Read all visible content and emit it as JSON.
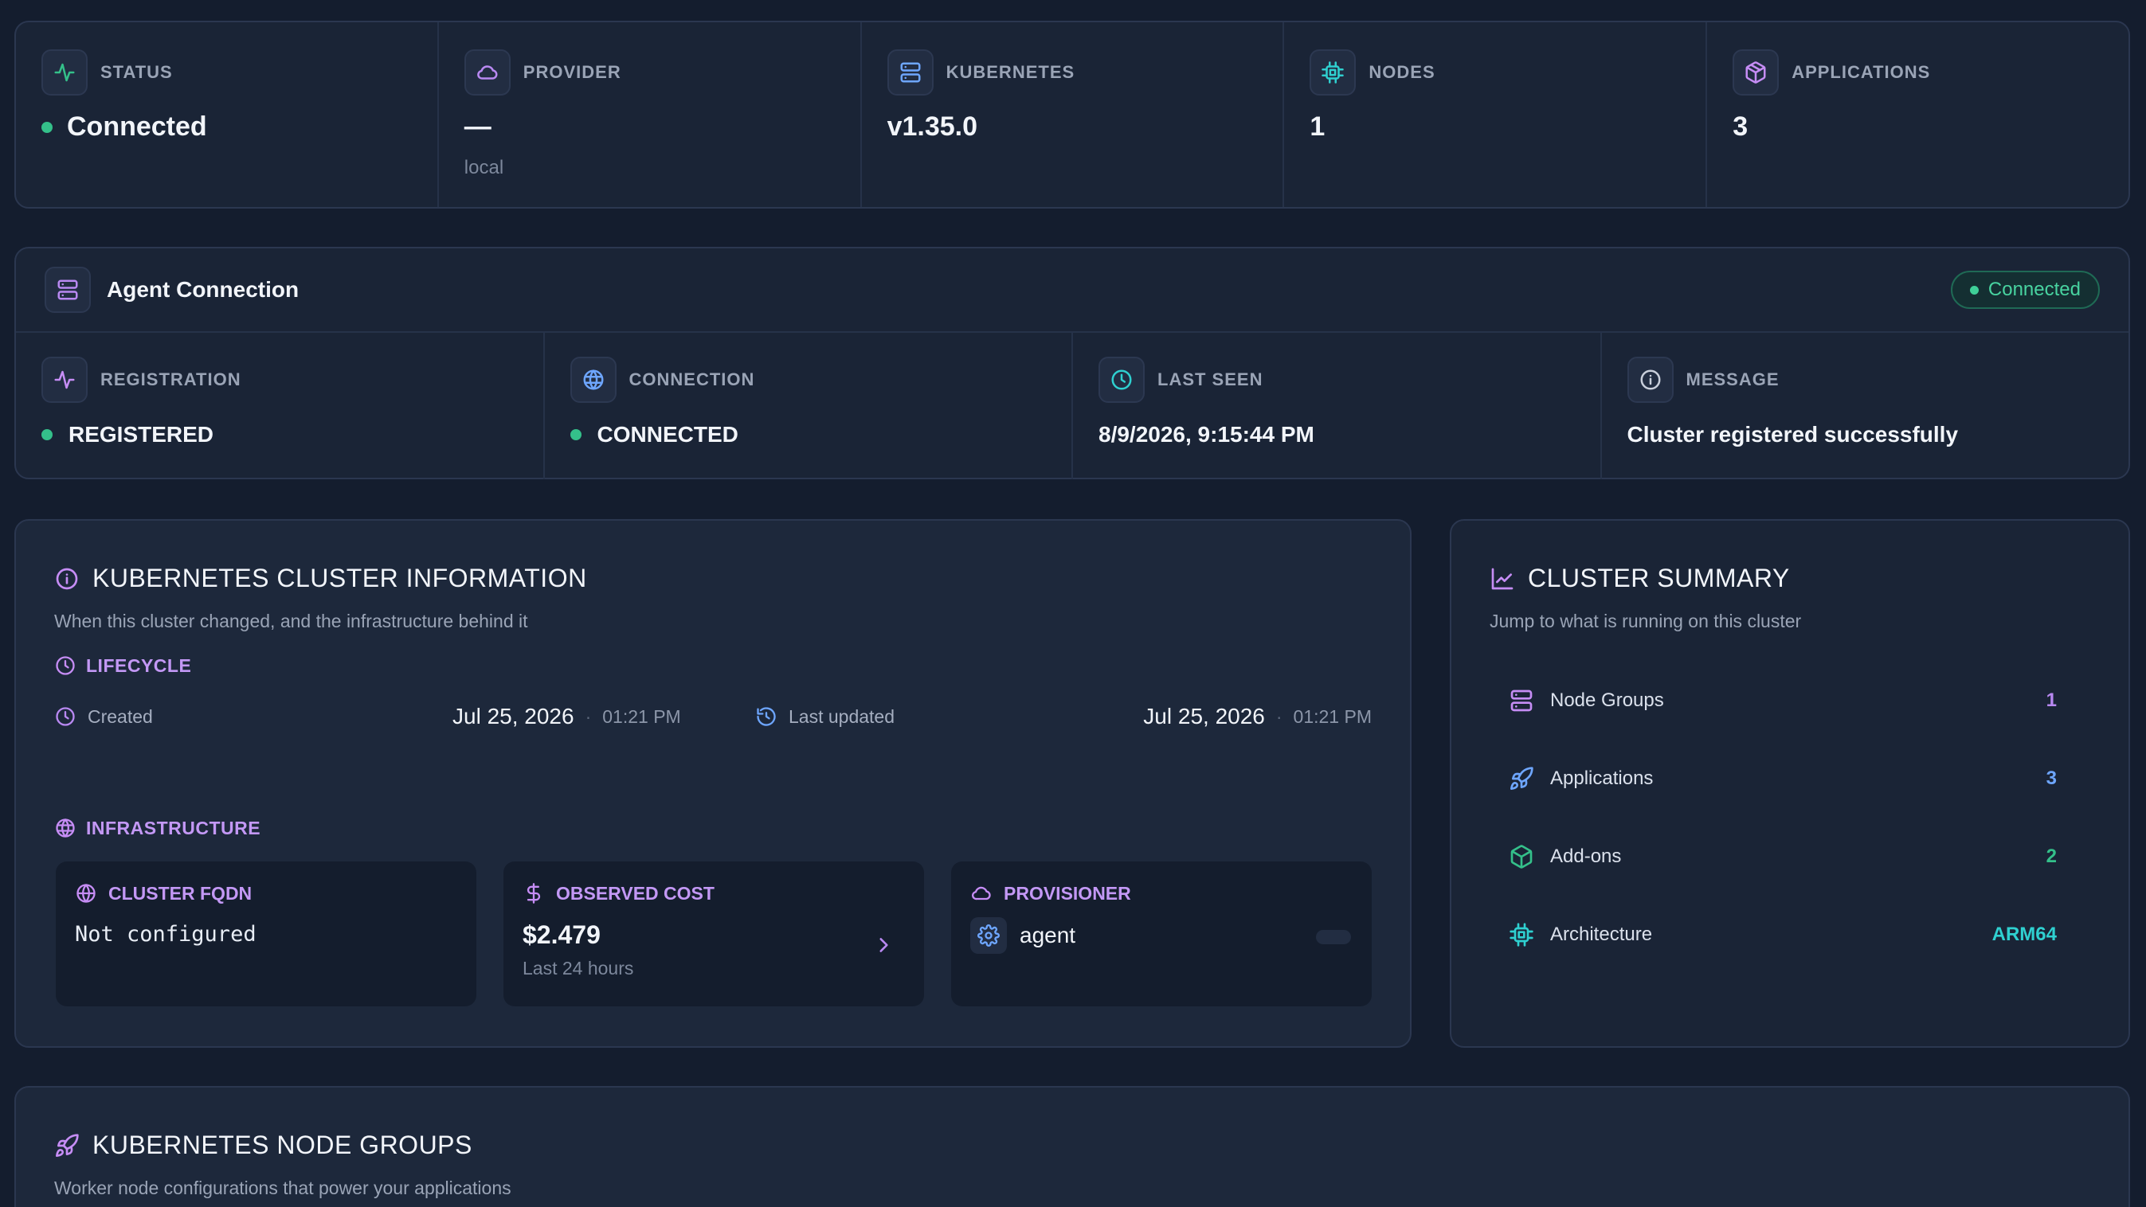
{
  "stats": [
    {
      "label": "STATUS",
      "value": "Connected",
      "sub": "",
      "icon": "activity-icon",
      "icon_color": "#34c08a"
    },
    {
      "label": "PROVIDER",
      "value": "—",
      "sub": "local",
      "icon": "cloud-icon",
      "icon_color": "#b989f2"
    },
    {
      "label": "KUBERNETES",
      "value": "v1.35.0",
      "sub": "",
      "icon": "server-icon",
      "icon_color": "#6ea6ff"
    },
    {
      "label": "NODES",
      "value": "1",
      "sub": "",
      "icon": "cpu-icon",
      "icon_color": "#2fd0d0"
    },
    {
      "label": "APPLICATIONS",
      "value": "3",
      "sub": "",
      "icon": "package-icon",
      "icon_color": "#c68df5"
    }
  ],
  "agent": {
    "title": "Agent Connection",
    "badge": "Connected",
    "cells": [
      {
        "label": "REGISTRATION",
        "value": "REGISTERED",
        "icon": "activity-icon"
      },
      {
        "label": "CONNECTION",
        "value": "CONNECTED",
        "icon": "globe-icon"
      },
      {
        "label": "LAST SEEN",
        "value": "8/9/2026, 9:15:44 PM",
        "icon": "clock-icon"
      },
      {
        "label": "MESSAGE",
        "value": "Cluster registered successfully",
        "icon": "info-icon"
      }
    ]
  },
  "info": {
    "title": "KUBERNETES CLUSTER INFORMATION",
    "desc": "When this cluster changed, and the infrastructure behind it",
    "lifecycle_label": "LIFECYCLE",
    "created_label": "Created",
    "created_date": "Jul 25, 2026",
    "created_time": "01:21 PM",
    "updated_label": "Last updated",
    "updated_date": "Jul 25, 2026",
    "updated_time": "01:21 PM",
    "infra_label": "INFRASTRUCTURE",
    "fqdn_label": "CLUSTER FQDN",
    "fqdn_value": "Not configured",
    "cost_label": "OBSERVED COST",
    "cost_value": "$2.479",
    "cost_sub": "Last 24 hours",
    "prov_label": "PROVISIONER",
    "prov_value": "agent"
  },
  "summary": {
    "title": "CLUSTER SUMMARY",
    "desc": "Jump to what is running on this cluster",
    "rows": [
      {
        "label": "Node Groups",
        "value": "1",
        "color": "#b989f2"
      },
      {
        "label": "Applications",
        "value": "3",
        "color": "#6ea6ff"
      },
      {
        "label": "Add-ons",
        "value": "2",
        "color": "#34c08a"
      },
      {
        "label": "Architecture",
        "value": "ARM64",
        "color": "#2fd0d0"
      }
    ]
  },
  "groups": {
    "title": "KUBERNETES NODE GROUPS",
    "desc": "Worker node configurations that power your applications"
  }
}
